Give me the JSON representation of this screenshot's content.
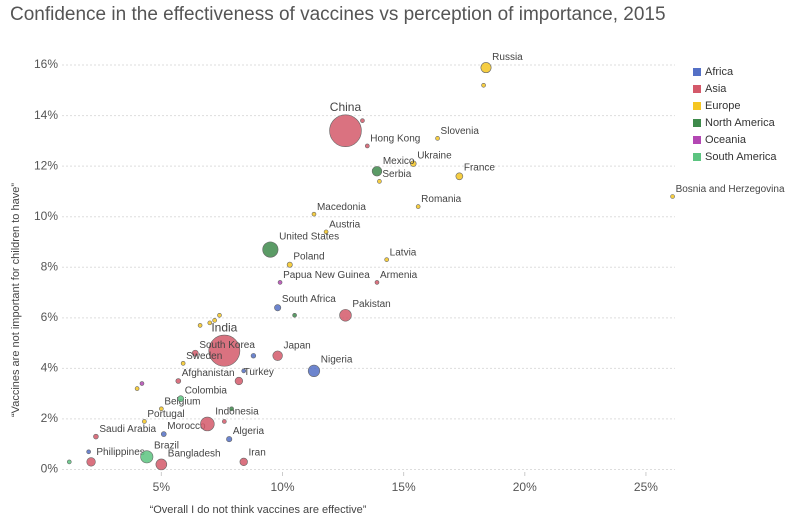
{
  "chart_data": {
    "type": "scatter",
    "title": "Confidence in the effectiveness of vaccines vs perception of importance, 2015",
    "x_label": "“Overall I do not think vaccines are effective”",
    "y_label": "“Vaccines are not important for children to have”",
    "xlim": [
      0.9,
      26.2
    ],
    "ylim": [
      -0.1,
      16.2
    ],
    "xticks": [
      {
        "value": 5,
        "label": "5%"
      },
      {
        "value": 10,
        "label": "10%"
      },
      {
        "value": 15,
        "label": "15%"
      },
      {
        "value": 20,
        "label": "20%"
      },
      {
        "value": 25,
        "label": "25%"
      }
    ],
    "yticks": [
      {
        "value": 0,
        "label": "0%"
      },
      {
        "value": 2,
        "label": "2%"
      },
      {
        "value": 4,
        "label": "4%"
      },
      {
        "value": 6,
        "label": "6%"
      },
      {
        "value": 8,
        "label": "8%"
      },
      {
        "value": 10,
        "label": "10%"
      },
      {
        "value": 12,
        "label": "12%"
      },
      {
        "value": 14,
        "label": "14%"
      },
      {
        "value": 16,
        "label": "16%"
      }
    ],
    "grid": true,
    "legend": "top-right",
    "series": [
      {
        "name": "Africa",
        "color": "#5470c6",
        "labels": [
          "South Africa",
          "Nigeria",
          "Algeria",
          "Morocco",
          null,
          null,
          null
        ],
        "x": [
          9.8,
          11.3,
          7.8,
          5.1,
          2.0,
          8.8,
          8.4
        ],
        "values": [
          6.4,
          3.9,
          1.2,
          1.4,
          0.7,
          4.5,
          3.9
        ],
        "sizes": [
          55,
          182,
          40,
          34,
          11,
          30,
          5
        ]
      },
      {
        "name": "Asia",
        "color": "#d4596a",
        "labels": [
          "China",
          "India",
          "Hong Kong",
          "Pakistan",
          "Japan",
          "South Korea",
          "Turkey",
          "Afghanistan",
          "Indonesia",
          "Bangladesh",
          "Iran",
          "Philippines",
          "Saudi Arabia",
          "Armenia",
          null,
          null
        ],
        "x": [
          12.6,
          7.6,
          13.5,
          12.6,
          9.8,
          6.4,
          8.2,
          5.7,
          6.9,
          5.0,
          8.4,
          2.1,
          2.3,
          13.9,
          7.6,
          13.3
        ],
        "values": [
          13.4,
          4.7,
          12.8,
          6.1,
          4.5,
          4.6,
          3.5,
          3.5,
          1.8,
          0.2,
          0.3,
          0.3,
          1.3,
          7.4,
          1.9,
          13.8
        ],
        "sizes": [
          1371,
          1311,
          7,
          189,
          127,
          51,
          79,
          33,
          258,
          161,
          79,
          101,
          32,
          3,
          21,
          2
        ]
      },
      {
        "name": "Europe",
        "color": "#f5c622",
        "labels": [
          "Russia",
          "Slovenia",
          "Ukraine",
          "France",
          "Serbia",
          "Romania",
          "Bosnia and Herzegovina",
          "Macedonia",
          "Austria",
          "Latvia",
          "Poland",
          "Sweden",
          "Belgium",
          "Portugal",
          null,
          null,
          null,
          null,
          null,
          null
        ],
        "x": [
          18.4,
          16.4,
          15.4,
          17.3,
          14.0,
          15.6,
          26.1,
          11.3,
          11.8,
          14.3,
          10.3,
          5.9,
          5.0,
          4.3,
          18.3,
          6.6,
          7.0,
          7.2,
          7.4,
          4.0
        ],
        "values": [
          15.9,
          13.1,
          12.1,
          11.6,
          11.4,
          10.4,
          10.8,
          10.1,
          9.4,
          8.3,
          8.1,
          4.2,
          2.4,
          1.9,
          15.2,
          5.7,
          5.8,
          5.9,
          6.1,
          3.2
        ],
        "sizes": [
          144,
          2,
          45,
          66,
          7,
          20,
          4,
          2,
          9,
          2,
          38,
          10,
          11,
          10,
          10,
          8,
          17,
          6,
          3,
          2
        ]
      },
      {
        "name": "North America",
        "color": "#3e8a4b",
        "labels": [
          "Mexico",
          "United States",
          null,
          null
        ],
        "x": [
          13.9,
          9.5,
          10.5,
          7.9
        ],
        "values": [
          11.8,
          8.7,
          6.1,
          2.4
        ],
        "sizes": [
          127,
          321,
          4,
          2
        ]
      },
      {
        "name": "Oceania",
        "color": "#b347b3",
        "labels": [
          "Papua New Guinea",
          null
        ],
        "x": [
          9.9,
          4.2
        ],
        "values": [
          7.4,
          3.4
        ],
        "sizes": [
          8,
          5
        ]
      },
      {
        "name": "South America",
        "color": "#5cc480",
        "labels": [
          "Colombia",
          "Brazil",
          null
        ],
        "x": [
          5.8,
          4.4,
          1.2
        ],
        "values": [
          2.8,
          0.5,
          0.3
        ],
        "sizes": [
          48,
          206,
          3
        ]
      }
    ]
  }
}
